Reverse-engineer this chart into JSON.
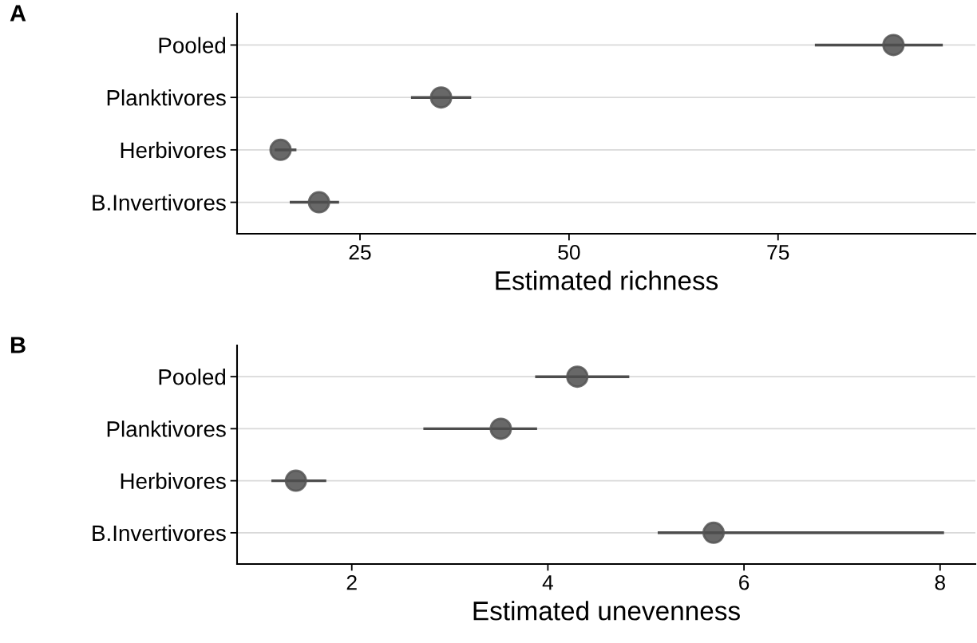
{
  "chart_data": [
    {
      "type": "scatter",
      "title": "A",
      "orientation": "horizontal",
      "xlabel": "Estimated richness",
      "categories": [
        "Pooled",
        "Planktivores",
        "Herbivores",
        "B.Invertivores"
      ],
      "series": [
        {
          "color": "#4d4d4d",
          "values": [
            88.8,
            34.7,
            15.5,
            20.1
          ],
          "errors": [
            [
              79.4,
              94.7
            ],
            [
              31.1,
              38.3
            ],
            [
              14.8,
              17.4
            ],
            [
              16.6,
              22.5
            ]
          ]
        }
      ],
      "xlim": [
        10.3,
        98.6
      ],
      "xticks": [
        25,
        50,
        75
      ],
      "grid": "y",
      "marker": "circle"
    },
    {
      "type": "scatter",
      "title": "B",
      "orientation": "horizontal",
      "xlabel": "Estimated unevenness",
      "categories": [
        "Pooled",
        "Planktivores",
        "Herbivores",
        "B.Invertivores"
      ],
      "series": [
        {
          "color": "#4d4d4d",
          "values": [
            4.3,
            3.52,
            1.43,
            5.69
          ],
          "errors": [
            [
              3.87,
              4.83
            ],
            [
              2.73,
              3.89
            ],
            [
              1.18,
              1.74
            ],
            [
              5.12,
              8.04
            ]
          ]
        }
      ],
      "xlim": [
        0.83,
        8.36
      ],
      "xticks": [
        2,
        4,
        6,
        8
      ],
      "grid": "y",
      "marker": "circle"
    }
  ]
}
